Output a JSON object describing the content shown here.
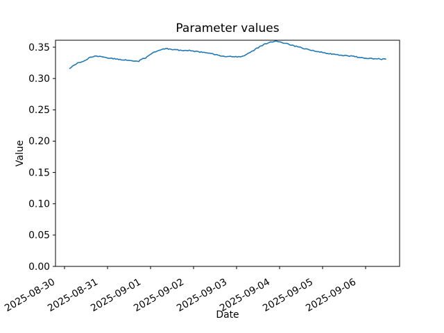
{
  "chart_data": {
    "type": "line",
    "title": "Parameter values",
    "xlabel": "Date",
    "ylabel": "Value",
    "legend": null,
    "grid": false,
    "line_color": "#1f77b4",
    "epoch": "2025-08-30T00:00",
    "x_tick_labels": [
      "2025-08-30",
      "2025-08-31",
      "2025-09-01",
      "2025-09-02",
      "2025-09-03",
      "2025-09-04",
      "2025-09-05",
      "2025-09-06"
    ],
    "y_tick_labels": [
      "0.00",
      "0.05",
      "0.10",
      "0.15",
      "0.20",
      "0.25",
      "0.30",
      "0.35"
    ],
    "y_ticks": [
      0.0,
      0.05,
      0.1,
      0.15,
      0.2,
      0.25,
      0.3,
      0.35
    ],
    "ylim": [
      0,
      0.3611
    ],
    "xlim_days": [
      -0.2097,
      7.7903
    ],
    "points": [
      [
        "2025-08-30T02:54",
        0.316
      ],
      [
        "2025-08-30T04:39",
        0.321
      ],
      [
        "2025-08-30T06:35",
        0.3235
      ],
      [
        "2025-08-30T10:26",
        0.328
      ],
      [
        "2025-08-30T14:20",
        0.3335
      ],
      [
        "2025-08-30T17:02",
        0.336
      ],
      [
        "2025-08-30T20:31",
        0.335
      ],
      [
        "2025-08-31T00:00",
        0.333
      ],
      [
        "2025-08-31T03:52",
        0.3315
      ],
      [
        "2025-08-31T07:45",
        0.33
      ],
      [
        "2025-08-31T11:37",
        0.329
      ],
      [
        "2025-08-31T14:43",
        0.3275
      ],
      [
        "2025-08-31T17:25",
        0.3268
      ],
      [
        "2025-08-31T18:11",
        0.33
      ],
      [
        "2025-08-31T21:17",
        0.333
      ],
      [
        "2025-09-01T00:23",
        0.3395
      ],
      [
        "2025-09-01T03:29",
        0.344
      ],
      [
        "2025-09-01T06:11",
        0.347
      ],
      [
        "2025-09-01T09:17",
        0.3475
      ],
      [
        "2025-09-01T13:34",
        0.346
      ],
      [
        "2025-09-01T17:25",
        0.345
      ],
      [
        "2025-09-01T22:26",
        0.3445
      ],
      [
        "2025-09-02T04:15",
        0.342
      ],
      [
        "2025-09-02T08:08",
        0.341
      ],
      [
        "2025-09-02T12:00",
        0.3385
      ],
      [
        "2025-09-02T15:06",
        0.336
      ],
      [
        "2025-09-02T19:45",
        0.335
      ],
      [
        "2025-09-02T23:37",
        0.3345
      ],
      [
        "2025-09-03T03:29",
        0.3355
      ],
      [
        "2025-09-03T07:21",
        0.341
      ],
      [
        "2025-09-03T11:14",
        0.348
      ],
      [
        "2025-09-03T15:06",
        0.354
      ],
      [
        "2025-09-03T18:58",
        0.358
      ],
      [
        "2025-09-03T21:40",
        0.3595
      ],
      [
        "2025-09-04T00:46",
        0.358
      ],
      [
        "2025-09-04T04:39",
        0.355
      ],
      [
        "2025-09-04T08:31",
        0.352
      ],
      [
        "2025-09-04T12:23",
        0.349
      ],
      [
        "2025-09-04T16:15",
        0.346
      ],
      [
        "2025-09-04T20:08",
        0.3435
      ],
      [
        "2025-09-05T00:00",
        0.3415
      ],
      [
        "2025-09-05T05:49",
        0.339
      ],
      [
        "2025-09-05T11:37",
        0.337
      ],
      [
        "2025-09-05T17:25",
        0.335
      ],
      [
        "2025-09-05T23:14",
        0.333
      ],
      [
        "2025-09-06T05:02",
        0.3317
      ],
      [
        "2025-09-06T08:54",
        0.331
      ],
      [
        "2025-09-06T11:14",
        0.331
      ]
    ]
  }
}
